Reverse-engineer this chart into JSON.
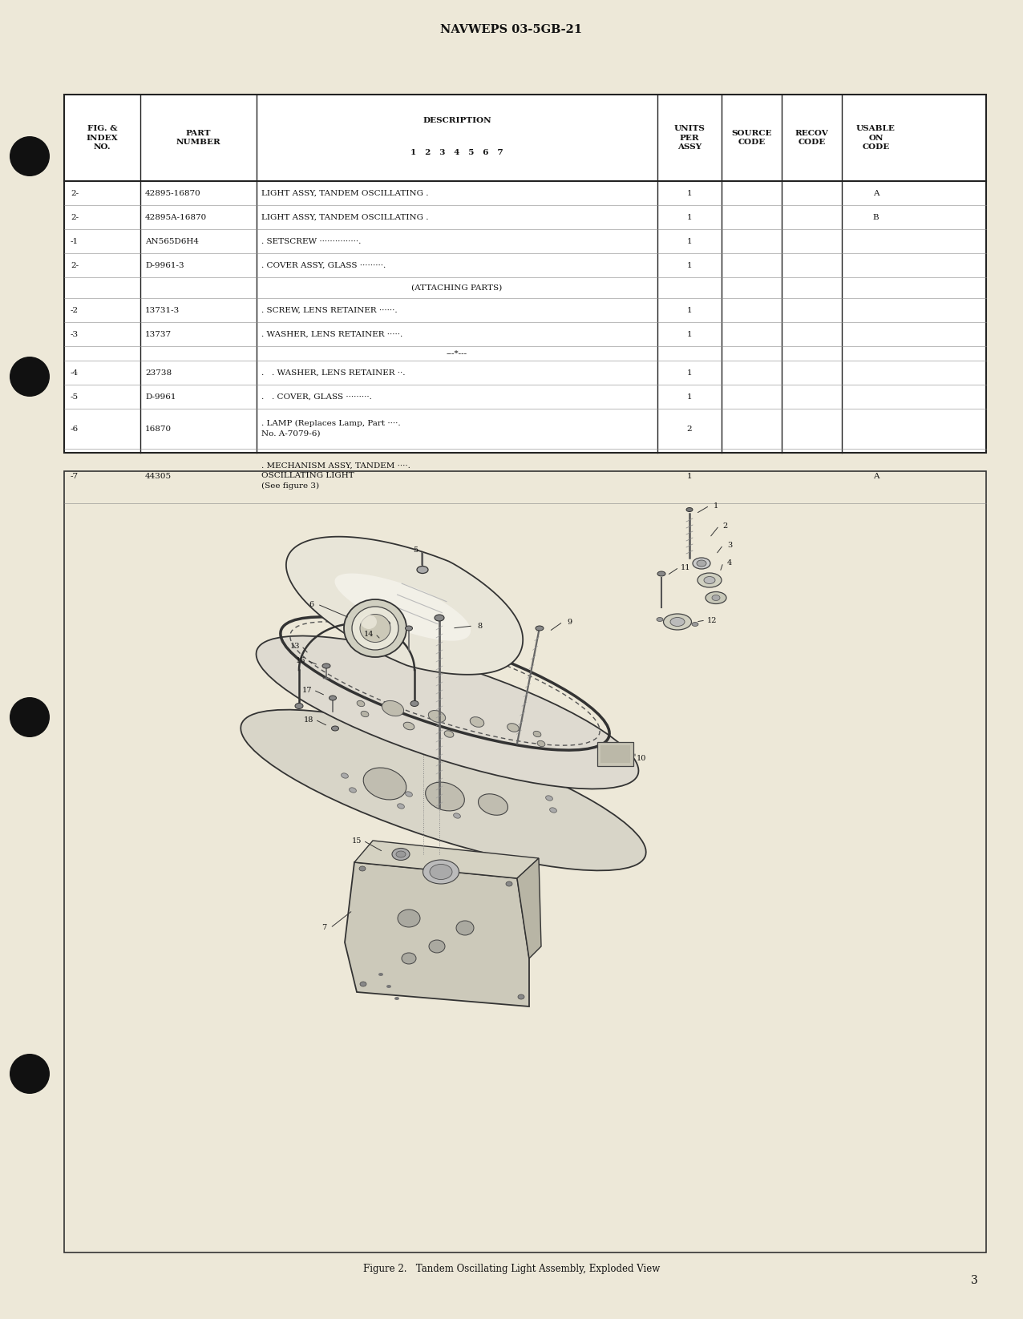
{
  "page_header": "NAVWEPS 03-5GB-21",
  "page_number": "3",
  "bg_color": "#ede8d8",
  "table_bg": "#ffffff",
  "header_rows": [
    [
      "FIG. &\nINDEX\nNO.",
      "PART\nNUMBER",
      "DESCRIPTION",
      "1  2  3  4  5  6  7",
      "UNITS\nPER\nASSY",
      "SOURCE\nCODE",
      "RECOV\nCODE",
      "USABLE\nON\nCODE"
    ]
  ],
  "rows": [
    [
      "2-",
      "42895-16870",
      "LIGHT ASSY, TANDEM OSCILLATING .",
      "1",
      "",
      "",
      "A"
    ],
    [
      "2-",
      "42895A-16870",
      "LIGHT ASSY, TANDEM OSCILLATING .",
      "1",
      "",
      "",
      "B"
    ],
    [
      "-1",
      "AN565D6H4",
      ". SETSCREW ···············.",
      "1",
      "",
      "",
      ""
    ],
    [
      "2-",
      "D-9961-3",
      ". COVER ASSY, GLASS ·········.",
      "1",
      "",
      "",
      ""
    ],
    [
      "",
      "",
      "(ATTACHING PARTS)",
      "",
      "",
      "",
      ""
    ],
    [
      "-2",
      "13731-3",
      ". SCREW, LENS RETAINER ······.",
      "1",
      "",
      "",
      ""
    ],
    [
      "-3",
      "13737",
      ". WASHER, LENS RETAINER ·····.",
      "1",
      "",
      "",
      ""
    ],
    [
      "",
      "",
      "---*---",
      "",
      "",
      "",
      ""
    ],
    [
      "-4",
      "23738",
      ".   . WASHER, LENS RETAINER ··.",
      "1",
      "",
      "",
      ""
    ],
    [
      "-5",
      "D-9961",
      ".   . COVER, GLASS ·········.",
      "1",
      "",
      "",
      ""
    ],
    [
      "-6",
      "16870",
      ". LAMP (Replaces Lamp, Part ····.",
      "2",
      "",
      "",
      ""
    ],
    [
      "",
      "",
      "No. A-7079-6)",
      "",
      "",
      "",
      ""
    ],
    [
      "-7",
      "44305",
      ". MECHANISM ASSY, TANDEM ····.",
      "1",
      "",
      "",
      "A"
    ],
    [
      "",
      "",
      "OSCILLATING LIGHT",
      "",
      "",
      "",
      ""
    ],
    [
      "",
      "",
      "(See figure 3)",
      "",
      "",
      "",
      ""
    ]
  ],
  "figure_caption": "Figure 2.   Tandem Oscillating Light Assembly, Exploded View"
}
